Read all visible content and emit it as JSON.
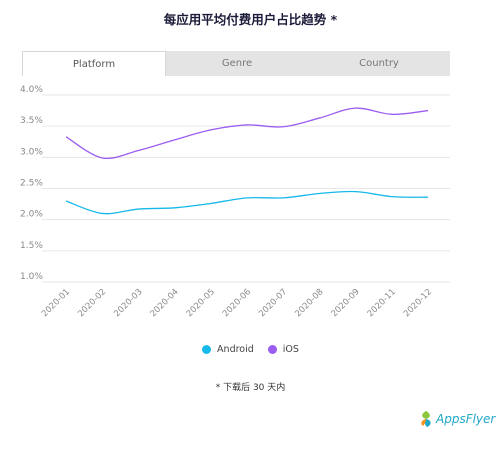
{
  "title": "每应用平均付费用户占比趋势 *",
  "tabs": [
    {
      "label": "Platform",
      "active": true
    },
    {
      "label": "Genre",
      "active": false
    },
    {
      "label": "Country",
      "active": false
    }
  ],
  "legend": [
    {
      "label": "Android",
      "color": "#17b8ea"
    },
    {
      "label": "iOS",
      "color": "#9b5cf0"
    }
  ],
  "footnote": "* 下载后 30 天内",
  "logo": {
    "text": "AppsFlyer",
    "icon": "appsflyer-logo-icon"
  },
  "chart_data": {
    "type": "line",
    "categories": [
      "2020-01",
      "2020-02",
      "2020-03",
      "2020-04",
      "2020-05",
      "2020-06",
      "2020-07",
      "2020-08",
      "2020-09",
      "2020-11",
      "2020-12"
    ],
    "ylim": [
      1.0,
      4.0
    ],
    "yticks": [
      "1.0%",
      "1.5%",
      "2.0%",
      "2.5%",
      "3.0%",
      "3.5%",
      "4.0%"
    ],
    "grid": true,
    "legend_position": "bottom",
    "series": [
      {
        "name": "Android",
        "values": [
          2.3,
          2.1,
          2.17,
          2.19,
          2.26,
          2.35,
          2.35,
          2.42,
          2.45,
          2.37,
          2.36
        ]
      },
      {
        "name": "iOS",
        "values": [
          3.33,
          2.99,
          3.11,
          3.28,
          3.44,
          3.52,
          3.49,
          3.63,
          3.79,
          3.69,
          3.75
        ]
      }
    ]
  }
}
